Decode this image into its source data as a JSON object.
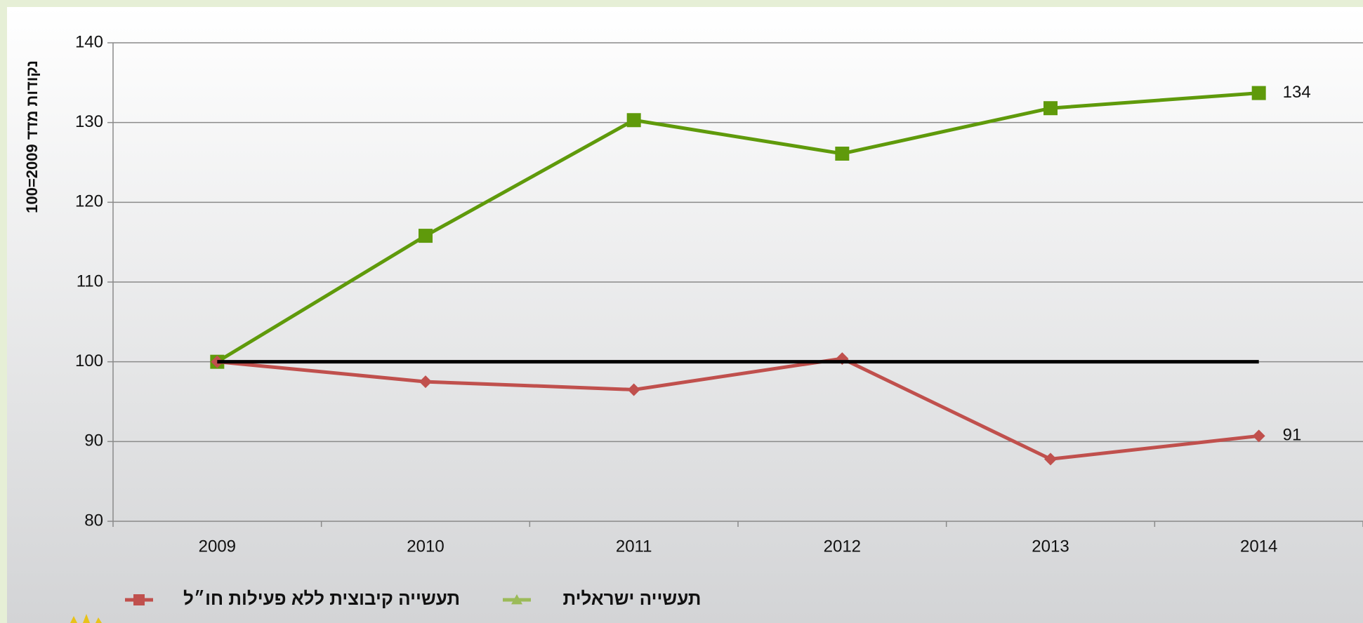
{
  "chart_data": {
    "type": "line",
    "y_axis_label": "נקודות מדד 2009=100",
    "categories": [
      "2009",
      "2010",
      "2011",
      "2012",
      "2013",
      "2014"
    ],
    "series": [
      {
        "name": "תעשייה ישראלית",
        "color": "#5f9a0b",
        "legend_color": "#9bbb59",
        "marker": "square",
        "legend_marker": "triangle",
        "values": [
          100,
          115.8,
          130.3,
          126.1,
          131.8,
          133.7
        ],
        "value_labels": [
          null,
          null,
          null,
          null,
          null,
          "134"
        ]
      },
      {
        "name": "תעשייה קיבוצית ללא פעילות חו״ל",
        "color": "#c0504d",
        "legend_color": "#c0504d",
        "marker": "diamond",
        "legend_marker": "square",
        "values": [
          100,
          97.5,
          96.5,
          100.4,
          87.8,
          90.7
        ],
        "value_labels": [
          null,
          null,
          null,
          null,
          null,
          "91"
        ]
      }
    ],
    "reference_line": {
      "value": 100,
      "color": "#000000"
    },
    "ylim": [
      80,
      140
    ],
    "yticks": [
      80,
      90,
      100,
      110,
      120,
      130,
      140
    ],
    "grid": true,
    "legend": "bottom-left"
  }
}
